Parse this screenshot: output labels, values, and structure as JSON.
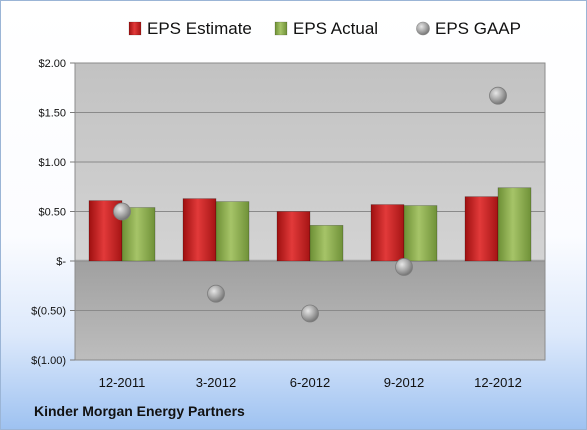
{
  "chart_data": {
    "type": "bar",
    "categories": [
      "12-2011",
      "3-2012",
      "6-2012",
      "9-2012",
      "12-2012"
    ],
    "series": [
      {
        "name": "EPS Estimate",
        "kind": "bar",
        "color": "#cc1f1f",
        "values": [
          0.61,
          0.63,
          0.5,
          0.57,
          0.65
        ]
      },
      {
        "name": "EPS Actual",
        "kind": "bar",
        "color": "#8aae4a",
        "values": [
          0.54,
          0.6,
          0.36,
          0.56,
          0.74
        ]
      },
      {
        "name": "EPS GAAP",
        "kind": "scatter",
        "color": "#a9a9a9",
        "values": [
          0.5,
          -0.33,
          -0.53,
          -0.06,
          1.67
        ]
      }
    ],
    "ylim": [
      -1.0,
      2.0
    ],
    "yticks": [
      {
        "value": 2.0,
        "label": "$2.00"
      },
      {
        "value": 1.5,
        "label": "$1.50"
      },
      {
        "value": 1.0,
        "label": "$1.00"
      },
      {
        "value": 0.5,
        "label": "$0.50"
      },
      {
        "value": 0.0,
        "label": "$-"
      },
      {
        "value": -0.5,
        "label": "$(0.50)"
      },
      {
        "value": -1.0,
        "label": "$(1.00)"
      }
    ],
    "grid": true,
    "legend": "top",
    "title": "",
    "xlabel": "",
    "ylabel": ""
  },
  "footer": {
    "company": "Kinder Morgan Energy Partners"
  }
}
